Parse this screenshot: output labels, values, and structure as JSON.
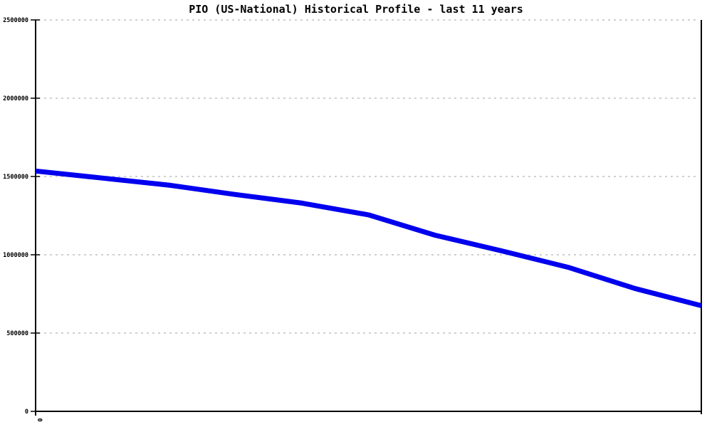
{
  "page": {
    "background_color": "#ffffff"
  },
  "chart_data": {
    "type": "line",
    "title": "PIO (US-National) Historical Profile - last 11 years",
    "xlabel": "",
    "ylabel": "",
    "x": [
      0,
      1,
      2,
      3,
      4,
      5,
      6,
      7,
      8,
      9,
      10
    ],
    "values": [
      1535000,
      1490000,
      1445000,
      1385000,
      1330000,
      1255000,
      1125000,
      1025000,
      920000,
      785000,
      675000
    ],
    "xlim": [
      0,
      10
    ],
    "ylim": [
      0,
      2500000
    ],
    "y_ticks": [
      0,
      500000,
      1000000,
      1500000,
      2000000,
      2500000
    ],
    "y_tick_labels": [
      "0",
      "500000",
      "1000000",
      "1500000",
      "2000000",
      "2500000"
    ],
    "x_tick_label": "0",
    "grid": "horizontal-dotted",
    "legend_position": "none",
    "line_color": "#0000ee",
    "grid_color": "#c0c0c0",
    "axis_color": "#000000",
    "text_color": "#000000"
  }
}
